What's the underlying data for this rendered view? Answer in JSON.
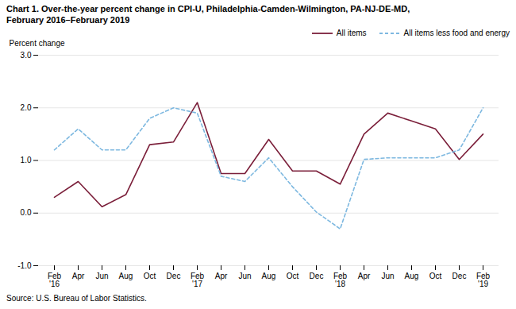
{
  "chart_data": {
    "type": "line",
    "title": "Chart 1. Over-the-year percent change in CPI-U, Philadelphia-Camden-Wilmington, PA-NJ-DE-MD,",
    "subtitle": "February 2016–February 2019",
    "ylabel": "Percent change",
    "caption": "Source: U.S. Bureau of Labor Statistics.",
    "categories": [
      "Feb\n'16",
      "Apr",
      "Jun",
      "Aug",
      "Oct",
      "Dec",
      "Feb\n'17",
      "Apr",
      "Jun",
      "Aug",
      "Oct",
      "Dec",
      "Feb\n'18",
      "Apr",
      "Jun",
      "Aug",
      "Oct",
      "Dec",
      "Feb\n'19"
    ],
    "series": [
      {
        "name": "All items",
        "color": "#7b1f3a",
        "line_style": "solid",
        "values": [
          0.3,
          0.6,
          0.12,
          0.35,
          1.3,
          1.35,
          2.1,
          0.75,
          0.75,
          1.4,
          0.8,
          0.8,
          0.55,
          1.5,
          1.9,
          1.75,
          1.6,
          1.02,
          1.5
        ]
      },
      {
        "name": "All items less food and energy",
        "color": "#7db8e0",
        "line_style": "dashed",
        "values": [
          1.2,
          1.6,
          1.2,
          1.2,
          1.8,
          2.0,
          1.9,
          0.7,
          0.6,
          1.05,
          0.5,
          0.02,
          -0.3,
          1.02,
          1.05,
          1.05,
          1.05,
          1.2,
          2.0
        ]
      }
    ],
    "ylim": [
      -1.0,
      3.0
    ],
    "yticks": [
      {
        "value": -1.0,
        "label": "-1.0"
      },
      {
        "value": 0.0,
        "label": "0.0"
      },
      {
        "value": 1.0,
        "label": "1.0"
      },
      {
        "value": 2.0,
        "label": "2.0"
      },
      {
        "value": 3.0,
        "label": "3.0"
      }
    ],
    "grid": true,
    "legend": "upper right"
  }
}
